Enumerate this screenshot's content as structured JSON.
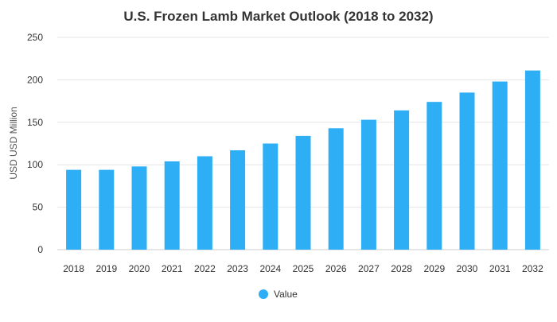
{
  "chart_data": {
    "type": "bar",
    "title": "U.S. Frozen Lamb Market Outlook (2018 to 2032)",
    "xlabel": "",
    "ylabel": "USD USD Million",
    "categories": [
      "2018",
      "2019",
      "2020",
      "2021",
      "2022",
      "2023",
      "2024",
      "2025",
      "2026",
      "2027",
      "2028",
      "2029",
      "2030",
      "2031",
      "2032"
    ],
    "series": [
      {
        "name": "Value",
        "values": [
          94,
          94,
          98,
          104,
          110,
          117,
          125,
          134,
          143,
          153,
          164,
          174,
          185,
          198,
          211
        ]
      }
    ],
    "ylim": [
      0,
      250
    ],
    "yticks": [
      0,
      50,
      100,
      150,
      200,
      250
    ],
    "grid": true,
    "legend_position": "bottom-center",
    "colors": {
      "bar": "#2eaff5",
      "grid": "#e6e6e6",
      "axis": "#cccccc"
    }
  }
}
